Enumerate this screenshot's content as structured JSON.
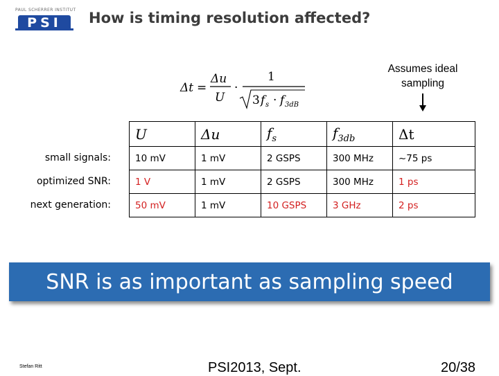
{
  "logo": {
    "top_text": "PAUL SCHERRER INSTITUT",
    "main_text": "PSI"
  },
  "title": "How is timing resolution affected?",
  "note": {
    "line1": "Assumes ideal",
    "line2": "sampling"
  },
  "formula": {
    "lhs": "Δt",
    "num": "Δu",
    "den": "U",
    "one": "1",
    "root_a": "3",
    "root_b": "f",
    "root_b_sub": "s",
    "root_c": "f",
    "root_c_sub": "3dB"
  },
  "table": {
    "headers": {
      "U": "U",
      "du": "Δu",
      "fs": "f",
      "fs_sub": "s",
      "f3db": "f",
      "f3db_sub": "3db",
      "dt": "Δt"
    },
    "rows": [
      {
        "label": "small signals:",
        "U": "10 mV",
        "du": "1 mV",
        "fs": "2 GSPS",
        "f3db": "300 MHz",
        "dt": "~75 ps"
      },
      {
        "label": "optimized SNR:",
        "U": "1 V",
        "du": "1 mV",
        "fs": "2 GSPS",
        "f3db": "300 MHz",
        "dt": "1 ps"
      },
      {
        "label": "next generation:",
        "U": "50 mV",
        "du": "1 mV",
        "fs": "10 GSPS",
        "f3db": "3 GHz",
        "dt": "2 ps"
      }
    ]
  },
  "banner": "SNR is as important as sampling speed",
  "footer": {
    "author": "Stefan Ritt",
    "conference": "PSI2013, Sept.",
    "page": "20/38"
  },
  "colors": {
    "accent_red": "#d31f1f",
    "banner_blue": "#2c6cb2",
    "logo_blue": "#1f4aa0"
  }
}
